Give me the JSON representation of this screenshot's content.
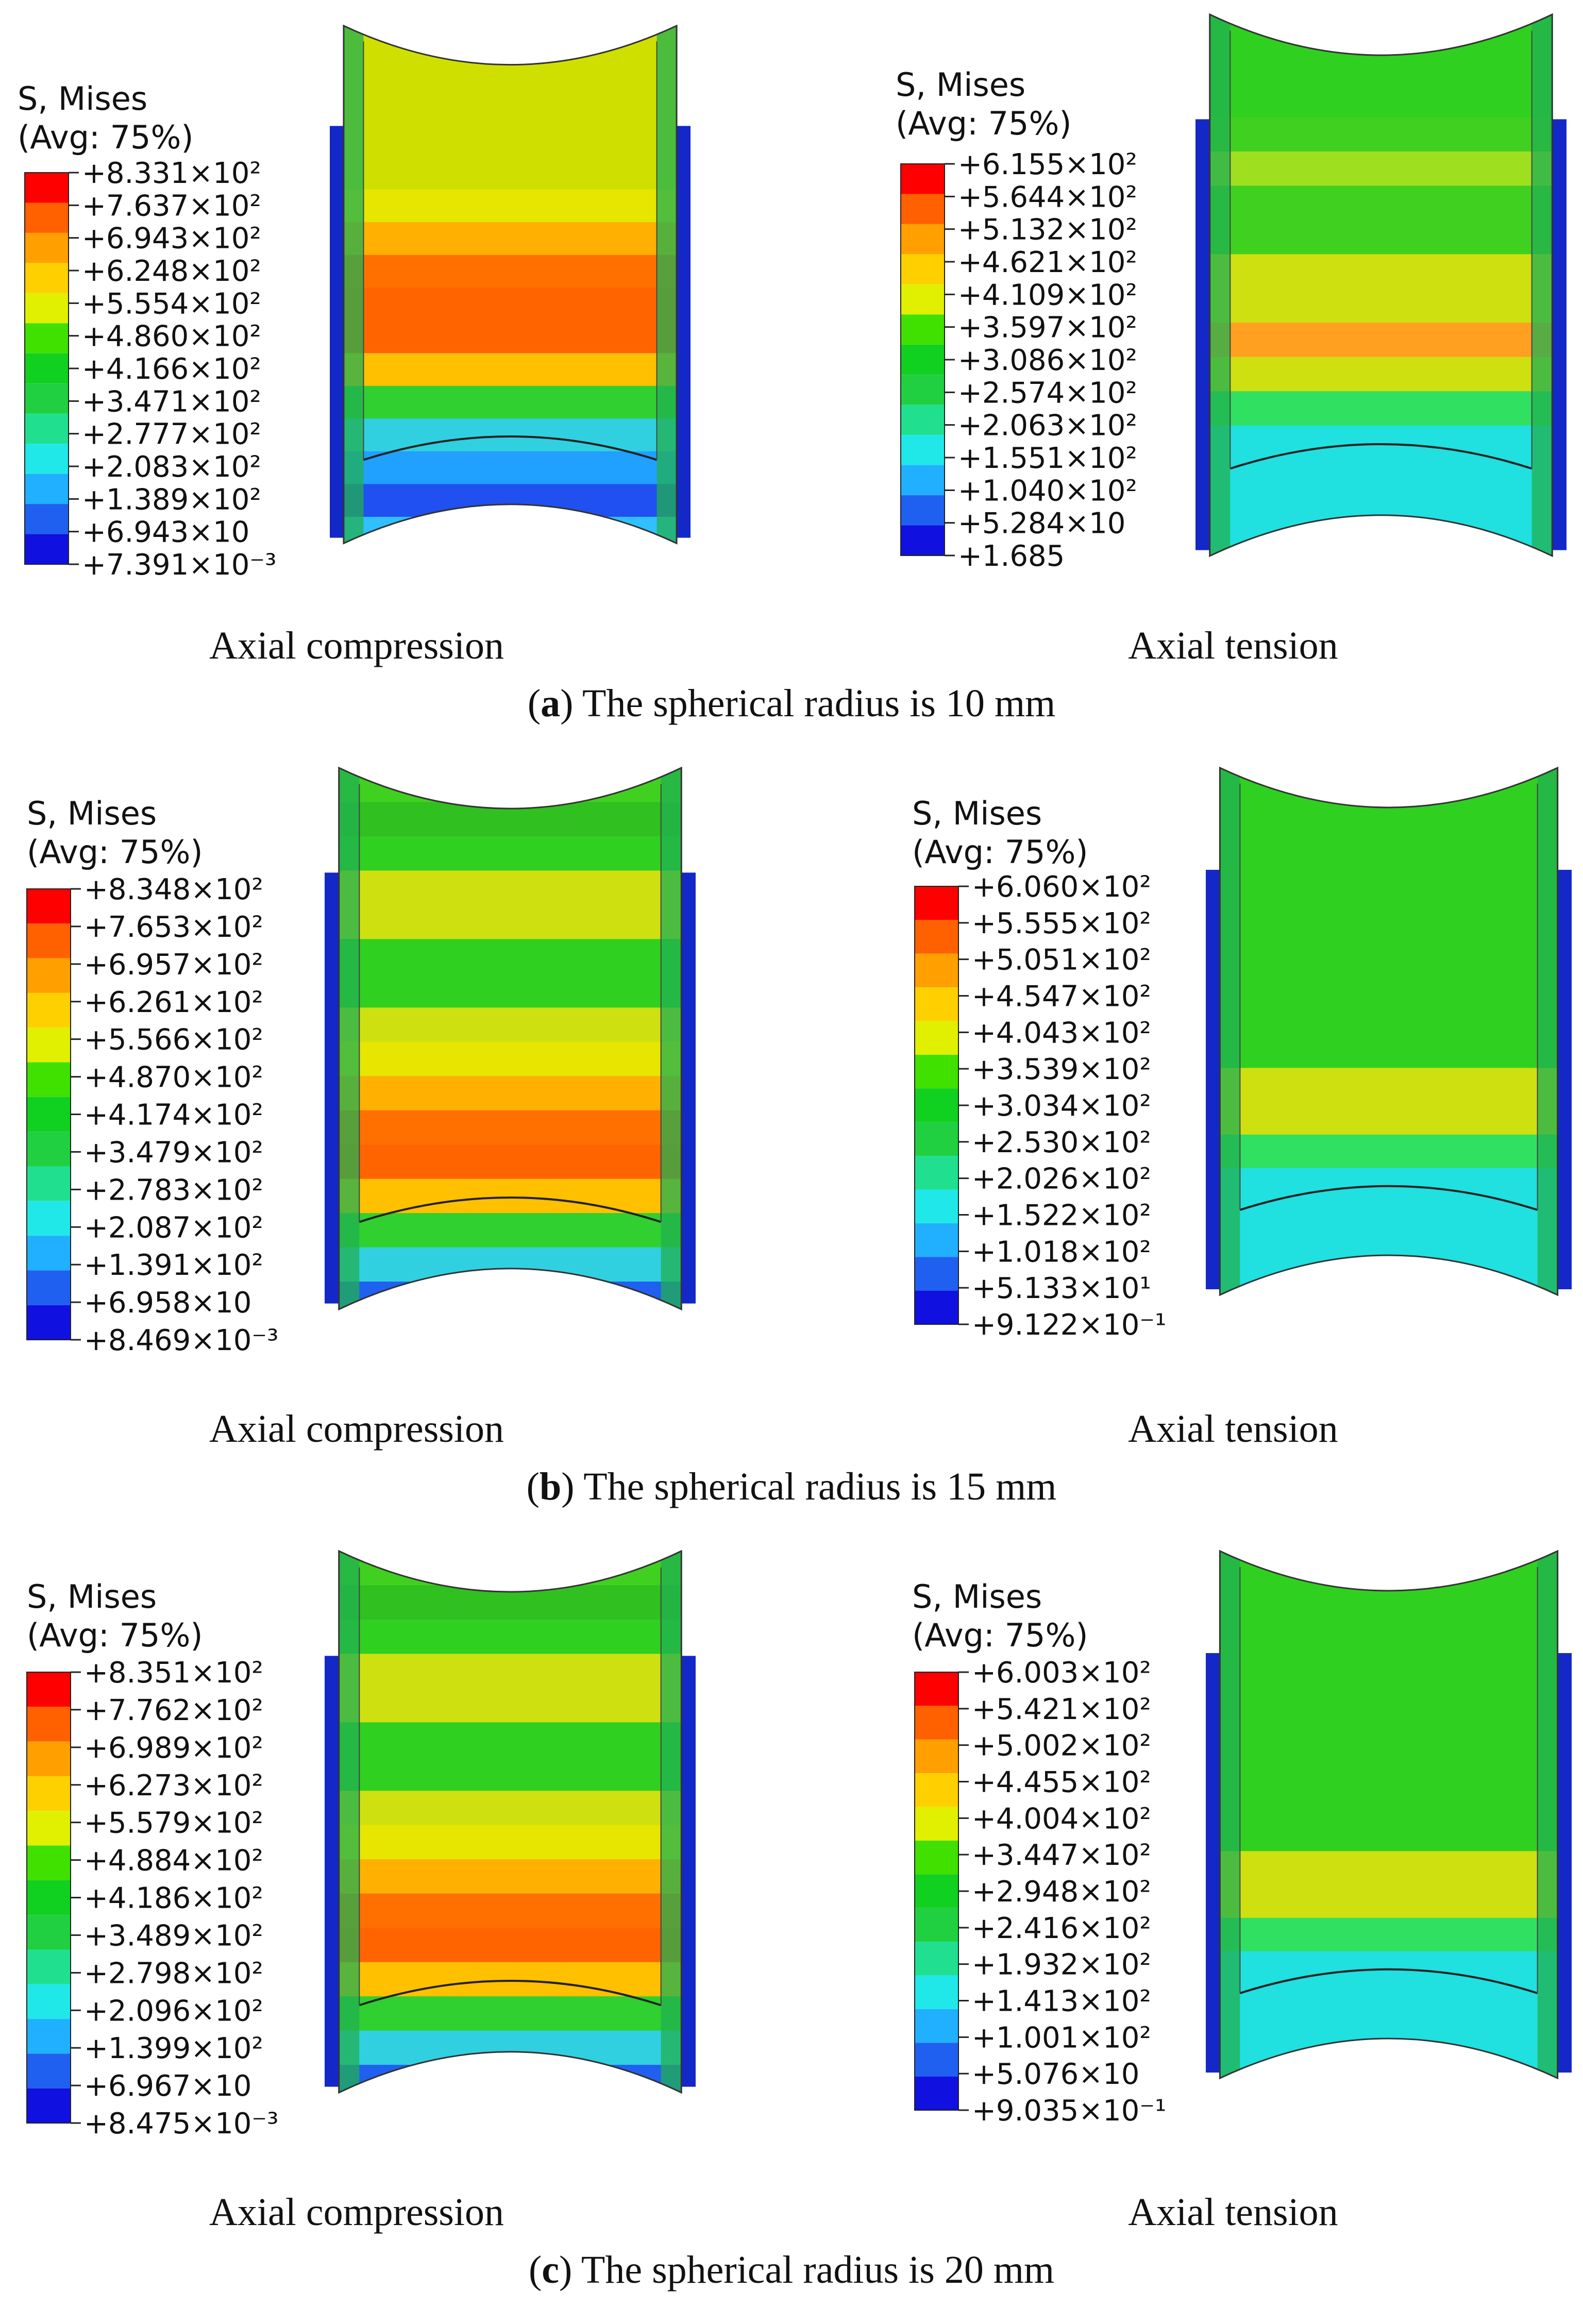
{
  "panels": [
    {
      "letter": "a",
      "caption_rest": ") The spherical radius is 10 mm",
      "left": {
        "caption": "Axial compression",
        "legend_title": "S, Mises",
        "legend_avg": "(Avg: 75%)",
        "values": [
          "+8.331×10²",
          "+7.637×10²",
          "+6.943×10²",
          "+6.248×10²",
          "+5.554×10²",
          "+4.860×10²",
          "+4.166×10²",
          "+3.471×10²",
          "+2.777×10²",
          "+2.083×10²",
          "+1.389×10²",
          "+6.943×10",
          "+7.391×10⁻³"
        ],
        "bands": [
          "#cfe000",
          "#cfe000",
          "#cfe000",
          "#cfe000",
          "#cfe000",
          "#e6e600",
          "#ffb000",
          "#ff7000",
          "#ff6400",
          "#ff6400",
          "#ffc000",
          "#30d030",
          "#30d0e0",
          "#20a0ff",
          "#2050f0",
          "#30c0ff",
          "#30d040"
        ]
      },
      "right": {
        "caption": "Axial tension",
        "legend_title": "S, Mises",
        "legend_avg": "(Avg: 75%)",
        "values": [
          "+6.155×10²",
          "+5.644×10²",
          "+5.132×10²",
          "+4.621×10²",
          "+4.109×10²",
          "+3.597×10²",
          "+3.086×10²",
          "+2.574×10²",
          "+2.063×10²",
          "+1.551×10²",
          "+1.040×10²",
          "+5.284×10",
          "+1.685"
        ],
        "bands": [
          "#30d020",
          "#30d020",
          "#30d020",
          "#40d020",
          "#9ee020",
          "#40d020",
          "#40d020",
          "#cfe010",
          "#cfe010",
          "#ffa020",
          "#cfe010",
          "#30e060",
          "#20e0e0",
          "#20e0e0",
          "#20e0e0",
          "#20e0e0",
          "#20e0e0"
        ]
      }
    },
    {
      "letter": "b",
      "caption_rest": ") The spherical radius is 15 mm",
      "left": {
        "caption": "Axial compression",
        "legend_title": "S, Mises",
        "legend_avg": "(Avg: 75%)",
        "values": [
          "+8.348×10²",
          "+7.653×10²",
          "+6.957×10²",
          "+6.261×10²",
          "+5.566×10²",
          "+4.870×10²",
          "+4.174×10²",
          "+3.479×10²",
          "+2.783×10²",
          "+2.087×10²",
          "+1.391×10²",
          "+6.958×10",
          "+8.469×10⁻³"
        ],
        "bands": [
          "#40d020",
          "#30c020",
          "#30d020",
          "#cfe010",
          "#cfe010",
          "#30d020",
          "#30d020",
          "#cfe010",
          "#e6e600",
          "#ffb000",
          "#ff7000",
          "#ff6400",
          "#ffc000",
          "#30d030",
          "#30d0e0",
          "#2060f0",
          "#30c0ff"
        ]
      },
      "right": {
        "caption": "Axial tension",
        "legend_title": "S, Mises",
        "legend_avg": "(Avg: 75%)",
        "values": [
          "+6.060×10²",
          "+5.555×10²",
          "+5.051×10²",
          "+4.547×10²",
          "+4.043×10²",
          "+3.539×10²",
          "+3.034×10²",
          "+2.530×10²",
          "+2.026×10²",
          "+1.522×10²",
          "+1.018×10²",
          "+5.133×10¹",
          "+9.122×10⁻¹"
        ],
        "bands": [
          "#30d020",
          "#30d020",
          "#30d020",
          "#30d020",
          "#30d020",
          "#30d020",
          "#30d020",
          "#30d020",
          "#30d020",
          "#cfe010",
          "#cfe010",
          "#30e060",
          "#20e0e0",
          "#20e0e0",
          "#20e0e0",
          "#20e0e0",
          "#20e0e0"
        ]
      }
    },
    {
      "letter": "c",
      "caption_rest": ") The spherical radius is 20 mm",
      "left": {
        "caption": "Axial compression",
        "legend_title": "S, Mises",
        "legend_avg": "(Avg: 75%)",
        "values": [
          "+8.351×10²",
          "+7.762×10²",
          "+6.989×10²",
          "+6.273×10²",
          "+5.579×10²",
          "+4.884×10²",
          "+4.186×10²",
          "+3.489×10²",
          "+2.798×10²",
          "+2.096×10²",
          "+1.399×10²",
          "+6.967×10",
          "+8.475×10⁻³"
        ],
        "bands": [
          "#40d020",
          "#30c020",
          "#30d020",
          "#cfe010",
          "#cfe010",
          "#30d020",
          "#30d020",
          "#cfe010",
          "#e6e600",
          "#ffb000",
          "#ff7000",
          "#ff6400",
          "#ffc000",
          "#30d030",
          "#30d0e0",
          "#2060f0",
          "#30c0ff"
        ]
      },
      "right": {
        "caption": "Axial tension",
        "legend_title": "S, Mises",
        "legend_avg": "(Avg: 75%)",
        "values": [
          "+6.003×10²",
          "+5.421×10²",
          "+5.002×10²",
          "+4.455×10²",
          "+4.004×10²",
          "+3.447×10²",
          "+2.948×10²",
          "+2.416×10²",
          "+1.932×10²",
          "+1.413×10²",
          "+1.001×10²",
          "+5.076×10",
          "+9.035×10⁻¹"
        ],
        "bands": [
          "#30d020",
          "#30d020",
          "#30d020",
          "#30d020",
          "#30d020",
          "#30d020",
          "#30d020",
          "#30d020",
          "#30d020",
          "#cfe010",
          "#cfe010",
          "#30e060",
          "#20e0e0",
          "#20e0e0",
          "#20e0e0",
          "#20e0e0",
          "#20e0e0"
        ]
      }
    }
  ],
  "legend_colors": [
    "#ff0000",
    "#ff6000",
    "#ffa000",
    "#ffd000",
    "#e0f000",
    "#40e000",
    "#10d020",
    "#20d040",
    "#20e090",
    "#20e8e8",
    "#20b0ff",
    "#2060f0",
    "#1010e0"
  ],
  "plate_color": "#1428c8"
}
